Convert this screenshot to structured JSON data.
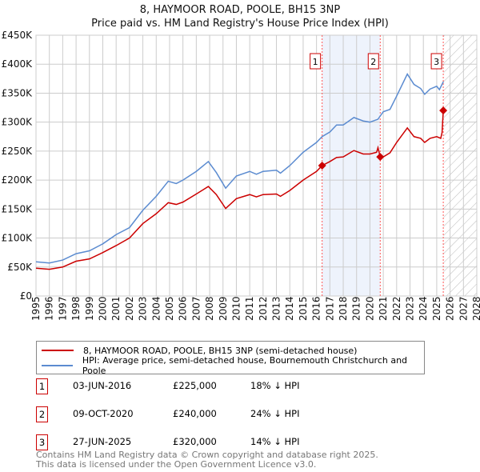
{
  "chart_data": {
    "type": "line",
    "title": "8, HAYMOOR ROAD, POOLE, BH15 3NP",
    "subtitle": "Price paid vs. HM Land Registry's House Price Index (HPI)",
    "xlim": [
      1995,
      2028
    ],
    "ylim": [
      0,
      450000
    ],
    "x_ticks": [
      "1995",
      "1996",
      "1997",
      "1998",
      "1999",
      "2000",
      "2001",
      "2002",
      "2003",
      "2004",
      "2005",
      "2006",
      "2007",
      "2008",
      "2009",
      "2010",
      "2011",
      "2012",
      "2013",
      "2014",
      "2015",
      "2016",
      "2017",
      "2018",
      "2019",
      "2020",
      "2021",
      "2022",
      "2023",
      "2024",
      "2025",
      "2026",
      "2027",
      "2028"
    ],
    "y_ticks": [
      "£0",
      "£50K",
      "£100K",
      "£150K",
      "£200K",
      "£250K",
      "£300K",
      "£350K",
      "£400K",
      "£450K"
    ],
    "grid": true,
    "series": [
      {
        "name": "8, HAYMOOR ROAD, POOLE, BH15 3NP (semi-detached house)",
        "color": "#cc0000",
        "x": [
          1995,
          1996,
          1997,
          1998,
          1999,
          2000,
          2001,
          2002,
          2003,
          2004,
          2004.9,
          2005.5,
          2006,
          2007,
          2007.9,
          2008.5,
          2009.2,
          2010,
          2011,
          2011.5,
          2012,
          2013,
          2013.3,
          2014,
          2015,
          2016,
          2016.42,
          2017,
          2017.5,
          2018,
          2018.8,
          2019.5,
          2020,
          2020.5,
          2020.6,
          2020.77,
          2021,
          2021.5,
          2022,
          2022.8,
          2023.3,
          2023.8,
          2024.1,
          2024.5,
          2025,
          2025.3,
          2025.4,
          2025.49
        ],
        "y": [
          48000,
          46000,
          50000,
          60000,
          64000,
          75000,
          87000,
          100000,
          125000,
          142000,
          161000,
          158000,
          162000,
          176000,
          189000,
          175000,
          151000,
          168000,
          175000,
          171000,
          175000,
          176000,
          172000,
          182000,
          200000,
          215000,
          225000,
          232000,
          239000,
          240000,
          251000,
          245000,
          245000,
          248000,
          256000,
          240000,
          240000,
          247000,
          265000,
          290000,
          275000,
          272000,
          265000,
          272000,
          275000,
          272000,
          282000,
          320000
        ]
      },
      {
        "name": "HPI: Average price, semi-detached house, Bournemouth Christchurch and Poole",
        "color": "#5b8bd0",
        "x": [
          1995,
          1996,
          1997,
          1998,
          1999,
          2000,
          2001,
          2002,
          2003,
          2004,
          2004.9,
          2005.5,
          2006,
          2007,
          2007.9,
          2008.5,
          2009.2,
          2010,
          2011,
          2011.5,
          2012,
          2013,
          2013.3,
          2014,
          2015,
          2016,
          2016.42,
          2017,
          2017.5,
          2018,
          2018.8,
          2019.5,
          2020,
          2020.6,
          2021,
          2021.5,
          2022,
          2022.8,
          2023.3,
          2023.8,
          2024.1,
          2024.5,
          2025,
          2025.2,
          2025.5
        ],
        "y": [
          59000,
          57000,
          62000,
          73000,
          78000,
          90000,
          106000,
          118000,
          148000,
          172000,
          198000,
          194000,
          200000,
          215000,
          232000,
          213000,
          186000,
          207000,
          215000,
          210000,
          215000,
          217000,
          212000,
          225000,
          248000,
          265000,
          275000,
          283000,
          295000,
          295000,
          308000,
          302000,
          300000,
          305000,
          318000,
          322000,
          345000,
          383000,
          365000,
          358000,
          348000,
          357000,
          362000,
          356000,
          370000
        ]
      }
    ],
    "sales": [
      {
        "label": "1",
        "x": 2016.42,
        "date": "03-JUN-2016",
        "price": 225000,
        "price_text": "£225,000",
        "hpi_text": "18% ↓ HPI"
      },
      {
        "label": "2",
        "x": 2020.77,
        "date": "09-OCT-2020",
        "price": 240000,
        "price_text": "£240,000",
        "hpi_text": "24% ↓ HPI"
      },
      {
        "label": "3",
        "x": 2025.49,
        "date": "27-JUN-2025",
        "price": 320000,
        "price_text": "£320,000",
        "hpi_text": "14% ↓ HPI"
      }
    ],
    "shaded_range": [
      2016.42,
      2020.77
    ],
    "forecast_hatch_from": 2025.5
  },
  "footer": {
    "line1": "Contains HM Land Registry data © Crown copyright and database right 2025.",
    "line2": "This data is licensed under the Open Government Licence v3.0."
  }
}
